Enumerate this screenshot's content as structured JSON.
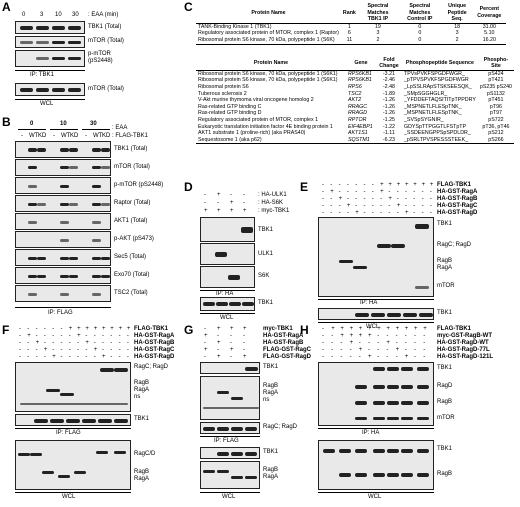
{
  "panel_letters": [
    "A",
    "B",
    "C",
    "D",
    "E",
    "F",
    "G",
    "H"
  ],
  "A": {
    "time_values": [
      "0",
      "3",
      "10",
      "30"
    ],
    "time_label": ": EAA (min)",
    "ip_label": "IP: TBK1",
    "wcl_label": "WCL",
    "rows": [
      "TBK1 (Total)",
      "mTOR (Total)",
      "p-mTOR\n(pS2448)",
      "mTOR (Total)"
    ]
  },
  "B": {
    "groups": [
      "0",
      "10",
      "30"
    ],
    "lane_labels": [
      "-",
      "WT",
      "KD",
      "-",
      "WT",
      "KD",
      "-",
      "WT",
      "KD"
    ],
    "eaa_label": ": EAA",
    "flag_label": ": FLAG-TBK1",
    "ip_label": "IP: FLAG",
    "rows": [
      "TBK1 (Total)",
      "mTOR (Total)",
      "p-mTOR (pS2448)",
      "Raptor (Total)",
      "AKT1 (Total)",
      "p-AKT (pS473)",
      "Sec5 (Total)",
      "Exo70 (Total)",
      "TSC2 (Total)"
    ]
  },
  "C": {
    "top_headers": [
      "Protein Name",
      "Rank",
      "Spectral Matches TBK1 IP",
      "Spectral Matches Control IP",
      "Unique Peptide Seq.",
      "Percent Coverage"
    ],
    "top_rows": [
      [
        "TANK-Binding Kinase 1 (TBK1)",
        "1",
        "19",
        "0",
        "18",
        "31.00"
      ],
      [
        "Regulatory associated protein of MTOR, complex 1 (Raptor)",
        "6",
        "3",
        "0",
        "3",
        "5.10"
      ],
      [
        "Ribosomal protein S6 kinase, 70 kDa, polypeptide 1 (S6K)",
        "11",
        "2",
        "0",
        "2",
        "16.20"
      ]
    ],
    "bottom_headers": [
      "Protein Name",
      "Gene",
      "Fold Change",
      "Phosphopeptide Sequence",
      "Phospho-Site"
    ],
    "bottom_rows": [
      [
        "Ribosomal protein S6 kinase, 70 kDa, polypeptide 1 (S6K1)",
        "RPS6KB1",
        "-3.21",
        "TPVsPVKFSPGDFWGR_",
        "pS424"
      ],
      [
        "Ribosomal protein S6 kinase, 70 kDa, polypeptide 1 (S6K1)",
        "RPS6KB1",
        "-2.46",
        "_pTPVSPVKFSPGDFWGR",
        "pT421"
      ],
      [
        "Ribosomal protein S6",
        "RPS6",
        "-2.48",
        "_LpSSLRApSTSKSEESQK_",
        "pS235 pS240"
      ],
      [
        "Tuberous sclerosis 2",
        "TSC2",
        "-1.89",
        "_SMpSGGHGLR_",
        "pS1132"
      ],
      [
        "V-Akt murine thymoma viral oncogene homolog 2",
        "AKT2",
        "-1.26",
        "_YFDDEFTAQSITITpTPPDRY",
        "pT451"
      ],
      [
        "Ras-related GTP binding C",
        "RRAGC",
        "-1.26",
        "_MSPNETLFLESpTNK_",
        "pT96"
      ],
      [
        "Ras-related GTP binding D",
        "RRAGD",
        "-1.26",
        "_MSPNETLFLESpTNK_",
        "pT97"
      ],
      [
        "Regulatory associated protein of MTOR, complex 1",
        "RPTOR",
        "-1.25",
        "_SVSpSYGNIR_",
        "pS722"
      ],
      [
        "Eukaryotic translation initiation factor 4E binding protein 1",
        "EIF4EBP1",
        "-1.22",
        "GDYSpTTPGGTLFSTpTP",
        "pT36, pT46"
      ],
      [
        "AKT1 substrate 1 (proline-rich) (aka PRAS40)",
        "AKT1S1",
        "-1.11",
        "_SSDEENGPPSpSPDLDR_",
        "pS212"
      ],
      [
        "Sequestosome 1 (aka p62)",
        "SQSTM1",
        "-6.23",
        "_pSRLTPVSPESSSTEEK_",
        "pS266"
      ]
    ]
  },
  "D": {
    "conditions": [
      ": HA-ULK1",
      ": HA-S6K",
      ": myc-TBK1"
    ],
    "signs": [
      [
        "-",
        "+",
        "-",
        "-"
      ],
      [
        "-",
        "-",
        "+",
        "-"
      ],
      [
        "+",
        "+",
        "+",
        "+"
      ]
    ],
    "ip_label": "IP: HA",
    "wcl_label": "WCL",
    "rows": [
      "TBK1",
      "ULK1",
      "S6K",
      "TBK1"
    ]
  },
  "E": {
    "conditions": [
      "FLAG-TBK1",
      "HA-GST-RagA",
      "HA-GST-RagB",
      "HA-GST-RagC",
      "HA-GST-RagD"
    ],
    "ip_label": "IP: HA",
    "wcl_label": "WCL",
    "rows": [
      "TBK1",
      "RagC; RagD",
      "RagB\nRagA",
      "mTOR",
      "TBK1"
    ]
  },
  "F": {
    "conditions": [
      "FLAG-TBK1",
      "HA-GST-RagA",
      "HA-GST-RagB",
      "HA-GST-RagC",
      "HA-GST-RagD"
    ],
    "ip_label": "IP: FLAG",
    "wcl_label": "WCL",
    "rows": [
      "RagC; RagD",
      "RagB\nRagA\nns",
      "TBK1",
      "RagC/D",
      "RagB\nRagA"
    ]
  },
  "G": {
    "conditions": [
      "myc-TBK1",
      "HA-GST-RagA",
      "HA-GST-RagB",
      "FLAG-GST-RagC",
      "FLAG-GST-RagD"
    ],
    "ip_label": "IP: FLAG",
    "wcl_label": "WCL",
    "rows": [
      "TBK1",
      "RagB\nRagA\nns",
      "RagC; RagD",
      "TBK1",
      "RagB\nRagA"
    ]
  },
  "H": {
    "conditions": [
      "FLAG-TBK1",
      "myc-GST-RagB-WT",
      "HA-GST-RagD-WT",
      "HA-GST-RagD-77L",
      "HA-GST-RagD-121L"
    ],
    "ip_label": "IP: HA",
    "wcl_label": "WCL",
    "rows": [
      "TBK1",
      "RagD",
      "RagB",
      "mTOR",
      "TBK1",
      "RagB"
    ]
  }
}
